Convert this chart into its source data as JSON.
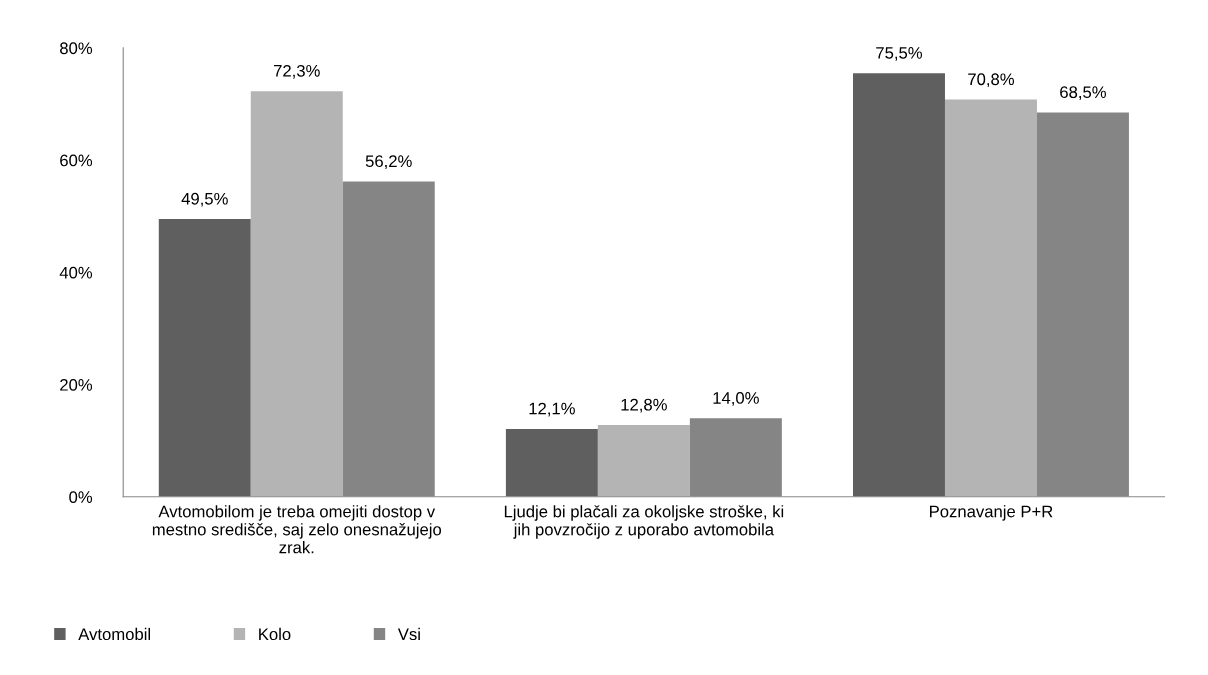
{
  "chart_data": {
    "type": "bar",
    "categories": [
      "Avtomobilom je treba omejiti dostop v\nmestno središče, saj zelo onesnažujejo\nzrak.",
      "Ljudje bi plačali za okoljske stroške, ki\njih povzročijo z uporabo avtomobila",
      "Poznavanje P+R"
    ],
    "series": [
      {
        "name": "Avtomobil",
        "color": "#5f5f5f",
        "values": [
          49.5,
          12.1,
          75.5
        ],
        "value_labels": [
          "49,5%",
          "12,1%",
          "75,5%"
        ]
      },
      {
        "name": "Kolo",
        "color": "#b4b4b4",
        "values": [
          72.3,
          12.8,
          70.8
        ],
        "value_labels": [
          "72,3%",
          "12,8%",
          "70,8%"
        ]
      },
      {
        "name": "Vsi",
        "color": "#858585",
        "values": [
          56.2,
          14.0,
          68.5
        ],
        "value_labels": [
          "56,2%",
          "14,0%",
          "68,5%"
        ]
      }
    ],
    "ylim": [
      0,
      80
    ],
    "yticks": [
      {
        "value": 0,
        "label": "0%"
      },
      {
        "value": 20,
        "label": "20%"
      },
      {
        "value": 40,
        "label": "40%"
      },
      {
        "value": 60,
        "label": "60%"
      },
      {
        "value": 80,
        "label": "80%"
      }
    ],
    "legend": "bottom left"
  }
}
